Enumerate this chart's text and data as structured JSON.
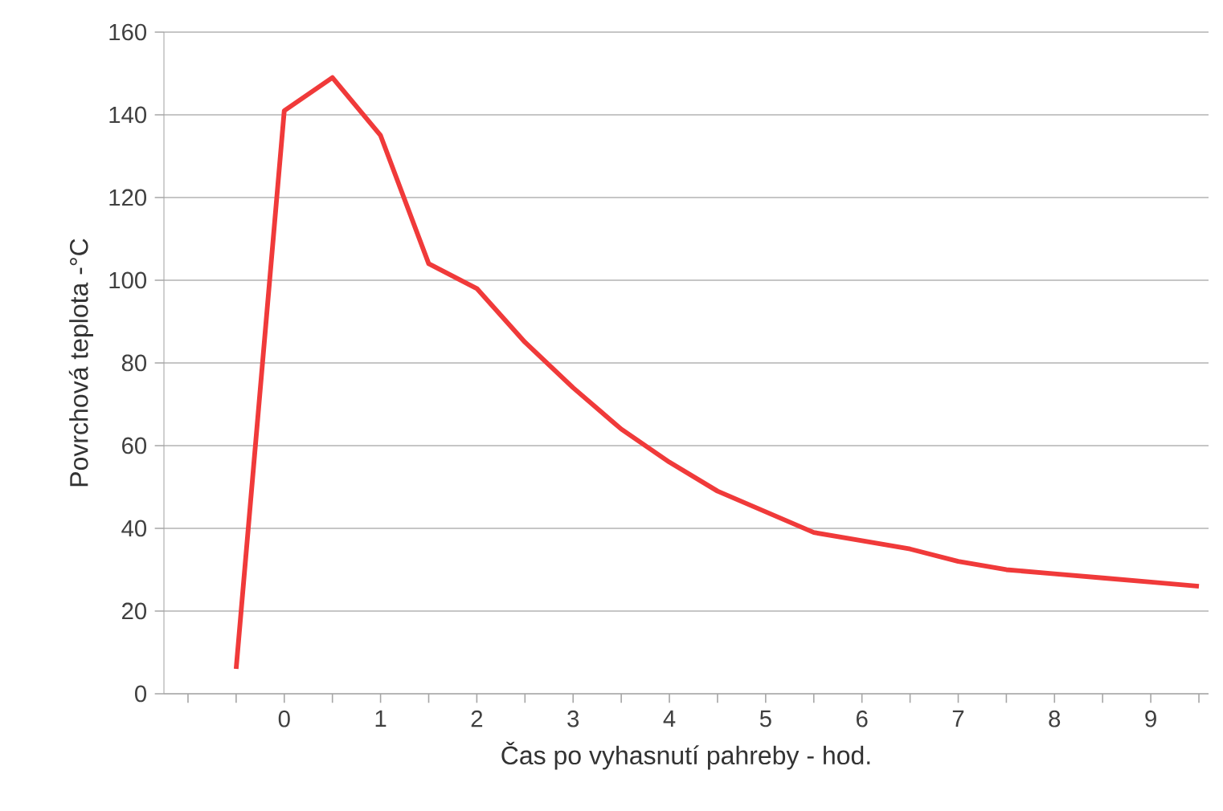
{
  "chart_data": {
    "type": "line",
    "xlabel": "Čas po vyhasnutí pahreby - hod.",
    "ylabel": "Povrchová teplota -°C",
    "x": [
      -0.5,
      0,
      0.5,
      1,
      1.5,
      2,
      2.5,
      3,
      3.5,
      4,
      4.5,
      5,
      5.5,
      6,
      6.5,
      7,
      7.5,
      8,
      8.5,
      9,
      9.5
    ],
    "values": [
      6,
      141,
      149,
      135,
      104,
      98,
      85,
      74,
      64,
      56,
      49,
      44,
      39,
      37,
      35,
      32,
      30,
      29,
      28,
      27,
      26
    ],
    "color": "#f03a3a",
    "line_style": "solid",
    "marker": "none",
    "xlim": [
      -1.25,
      9.6
    ],
    "xticks": [
      {
        "value": -1,
        "label": null
      },
      {
        "value": -0.5,
        "label": null
      },
      0,
      {
        "value": 0.5,
        "label": null
      },
      1,
      {
        "value": 1.5,
        "label": null
      },
      2,
      {
        "value": 2.5,
        "label": null
      },
      3,
      {
        "value": 3.5,
        "label": null
      },
      4,
      {
        "value": 4.5,
        "label": null
      },
      5,
      {
        "value": 5.5,
        "label": null
      },
      6,
      {
        "value": 6.5,
        "label": null
      },
      7,
      {
        "value": 7.5,
        "label": null
      },
      8,
      {
        "value": 8.5,
        "label": null
      },
      9,
      {
        "value": 9.5,
        "label": null
      }
    ],
    "ylim": [
      0,
      160
    ],
    "yticks": [
      0,
      20,
      40,
      60,
      80,
      100,
      120,
      140,
      160
    ],
    "grid": "y"
  }
}
